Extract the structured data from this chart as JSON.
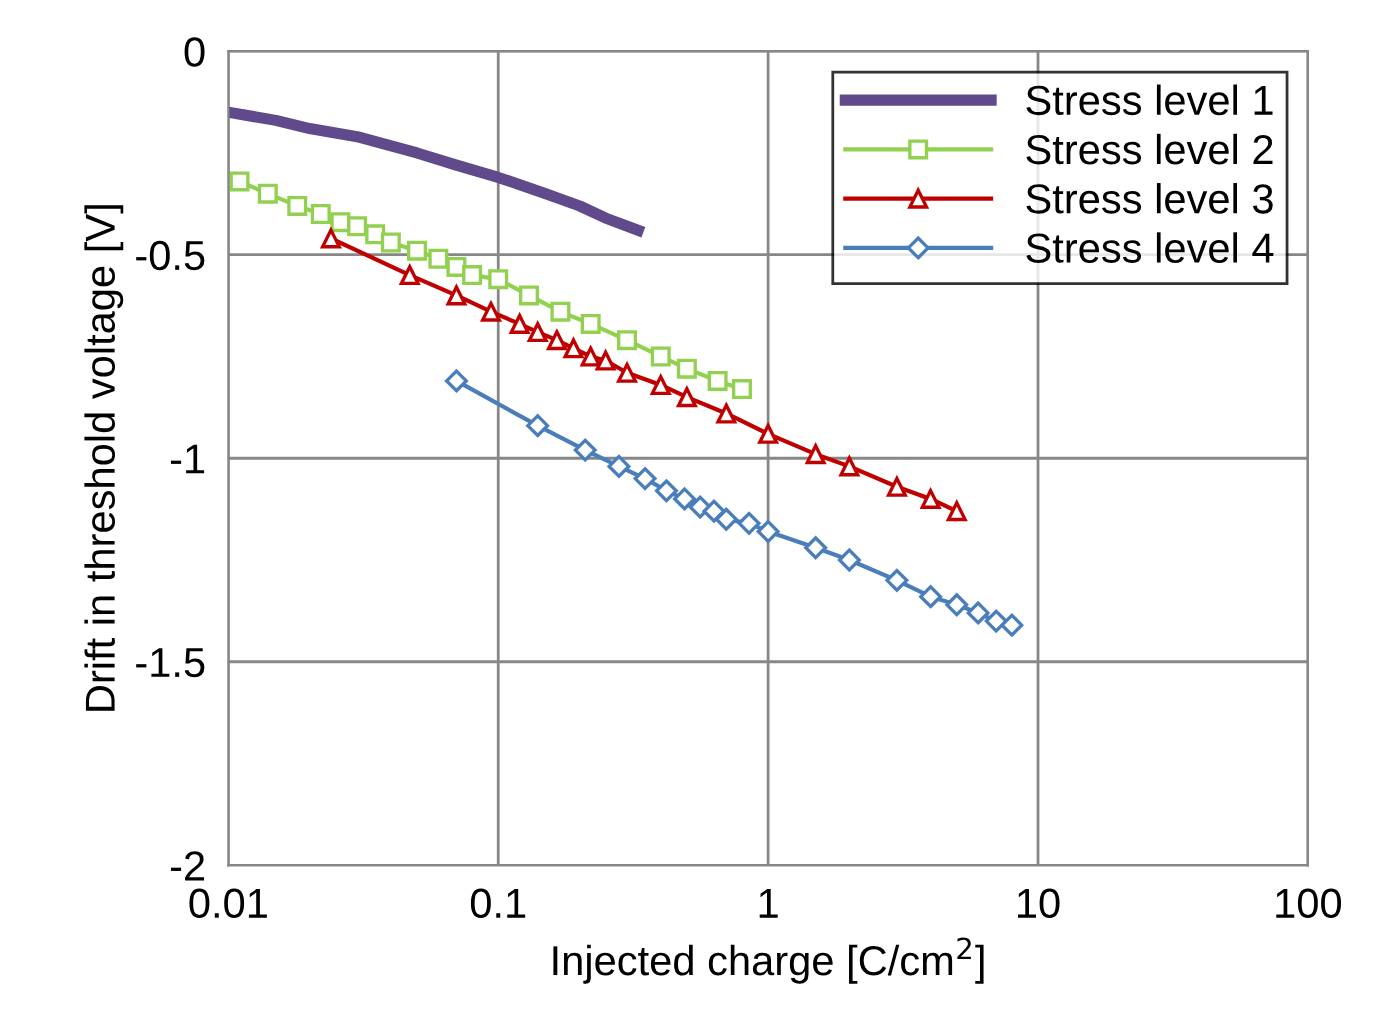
{
  "chart_data": {
    "type": "line",
    "xlabel": "Injected charge [C/cm$^{2}$]",
    "ylabel": "Drift in threshold voltage [V]",
    "log": "x",
    "xlim": [
      0.01,
      100
    ],
    "xticks": [
      0.01,
      0.1,
      1,
      10,
      100
    ],
    "ylim": [
      -2,
      0
    ],
    "yticks": [
      {
        "value": -2,
        "label": "-2"
      },
      {
        "value": -1.5,
        "label": "-1.5"
      },
      {
        "value": -1,
        "label": "-1"
      },
      {
        "value": -0.5,
        "label": "-0.5"
      },
      {
        "value": 0,
        "label": "0"
      }
    ],
    "grid": true,
    "legend": "top right",
    "line_style": "solid",
    "series": [
      {
        "name": "Stress level 1",
        "color": "#604a8b",
        "marker": "none",
        "x": [
          0.01,
          0.015,
          0.02,
          0.03,
          0.05,
          0.07,
          0.1,
          0.15,
          0.2,
          0.25,
          0.33
        ],
        "values": [
          -0.15,
          -0.17,
          -0.19,
          -0.21,
          -0.25,
          -0.28,
          -0.31,
          -0.35,
          -0.38,
          -0.41,
          -0.44
        ]
      },
      {
        "name": "Stress level 2",
        "color": "#92d050",
        "marker": "square",
        "x": [
          0.011,
          0.014,
          0.018,
          0.022,
          0.026,
          0.03,
          0.035,
          0.04,
          0.05,
          0.06,
          0.07,
          0.08,
          0.1,
          0.13,
          0.17,
          0.22,
          0.3,
          0.4,
          0.5,
          0.65,
          0.8
        ],
        "values": [
          -0.32,
          -0.35,
          -0.38,
          -0.4,
          -0.42,
          -0.43,
          -0.45,
          -0.47,
          -0.49,
          -0.51,
          -0.53,
          -0.55,
          -0.56,
          -0.6,
          -0.64,
          -0.67,
          -0.71,
          -0.75,
          -0.78,
          -0.81,
          -0.83
        ]
      },
      {
        "name": "Stress level 3",
        "color": "#c00000",
        "marker": "triangle",
        "x": [
          0.024,
          0.047,
          0.07,
          0.094,
          0.12,
          0.14,
          0.165,
          0.19,
          0.22,
          0.25,
          0.3,
          0.4,
          0.5,
          0.7,
          1,
          1.5,
          2,
          3,
          4,
          5
        ],
        "values": [
          -0.46,
          -0.55,
          -0.6,
          -0.64,
          -0.67,
          -0.69,
          -0.71,
          -0.73,
          -0.75,
          -0.76,
          -0.79,
          -0.82,
          -0.85,
          -0.89,
          -0.94,
          -0.99,
          -1.02,
          -1.07,
          -1.1,
          -1.13
        ]
      },
      {
        "name": "Stress level 4",
        "color": "#4a7ebb",
        "marker": "diamond",
        "x": [
          0.07,
          0.14,
          0.21,
          0.28,
          0.35,
          0.42,
          0.49,
          0.56,
          0.63,
          0.7,
          0.85,
          1,
          1.5,
          2,
          3,
          4,
          5,
          6,
          7,
          8
        ],
        "values": [
          -0.81,
          -0.92,
          -0.98,
          -1.02,
          -1.05,
          -1.08,
          -1.1,
          -1.12,
          -1.13,
          -1.15,
          -1.16,
          -1.18,
          -1.22,
          -1.25,
          -1.3,
          -1.34,
          -1.36,
          -1.38,
          -1.4,
          -1.41
        ]
      }
    ]
  }
}
